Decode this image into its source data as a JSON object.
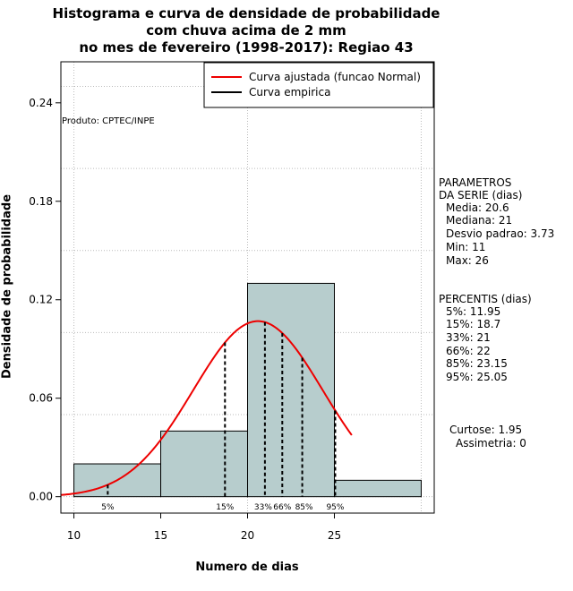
{
  "chart_data": {
    "type": "histogram",
    "title": [
      "Histograma e curva de densidade de probabilidade",
      "com chuva acima de 2 mm",
      "no mes de fevereiro (1998-2017): Regiao 43"
    ],
    "xlabel": "Numero de dias",
    "ylabel": "Densidade de probabilidade",
    "xlim": [
      9.25,
      30.75
    ],
    "ylim": [
      -0.01,
      0.265
    ],
    "x_ticks": [
      10,
      15,
      20,
      25
    ],
    "y_ticks": [
      0.0,
      0.06,
      0.12,
      0.18,
      0.24
    ],
    "y_tick_labels": [
      "0.00",
      "0.06",
      "0.12",
      "0.18",
      "0.24"
    ],
    "bins": [
      {
        "x0": 10,
        "x1": 15,
        "density": 0.02
      },
      {
        "x0": 15,
        "x1": 20,
        "density": 0.04
      },
      {
        "x0": 20,
        "x1": 25,
        "density": 0.13
      },
      {
        "x0": 25,
        "x1": 30,
        "density": 0.01
      }
    ],
    "normal_fit": {
      "mean": 20.6,
      "sd": 3.73,
      "x_from": 9.25,
      "x_to": 26
    },
    "percentiles": [
      {
        "label": "5%",
        "value": 11.95
      },
      {
        "label": "15%",
        "value": 18.7
      },
      {
        "label": "33%",
        "value": 21
      },
      {
        "label": "66%",
        "value": 22
      },
      {
        "label": "85%",
        "value": 23.15
      },
      {
        "label": "95%",
        "value": 25.05
      }
    ],
    "legend": {
      "position": "top-right",
      "entries": [
        {
          "label": "Curva ajustada (funcao Normal)",
          "color": "#ee0000"
        },
        {
          "label": "Curva empirica",
          "color": "#000000"
        }
      ]
    },
    "annotation": "Produto: CPTEC/INPE",
    "colors": {
      "bar_fill": "#b7cdcd",
      "curve": "#ee0000",
      "grid": "#bbbbbb"
    }
  },
  "side_panel": {
    "params_title_1": "PARAMETROS",
    "params_title_2": "DA SERIE (dias)",
    "params": [
      "Media: 20.6",
      "Mediana: 21",
      "Desvio padrao: 3.73",
      "Min: 11",
      "Max: 26"
    ],
    "percentis_title": "PERCENTIS (dias)",
    "percentis": [
      "5%: 11.95",
      "15%: 18.7",
      "33%: 21",
      "66%: 22",
      "85%: 23.15",
      "95%: 25.05"
    ],
    "curtose": "Curtose: 1.95",
    "assimetria": "Assimetria: 0"
  }
}
